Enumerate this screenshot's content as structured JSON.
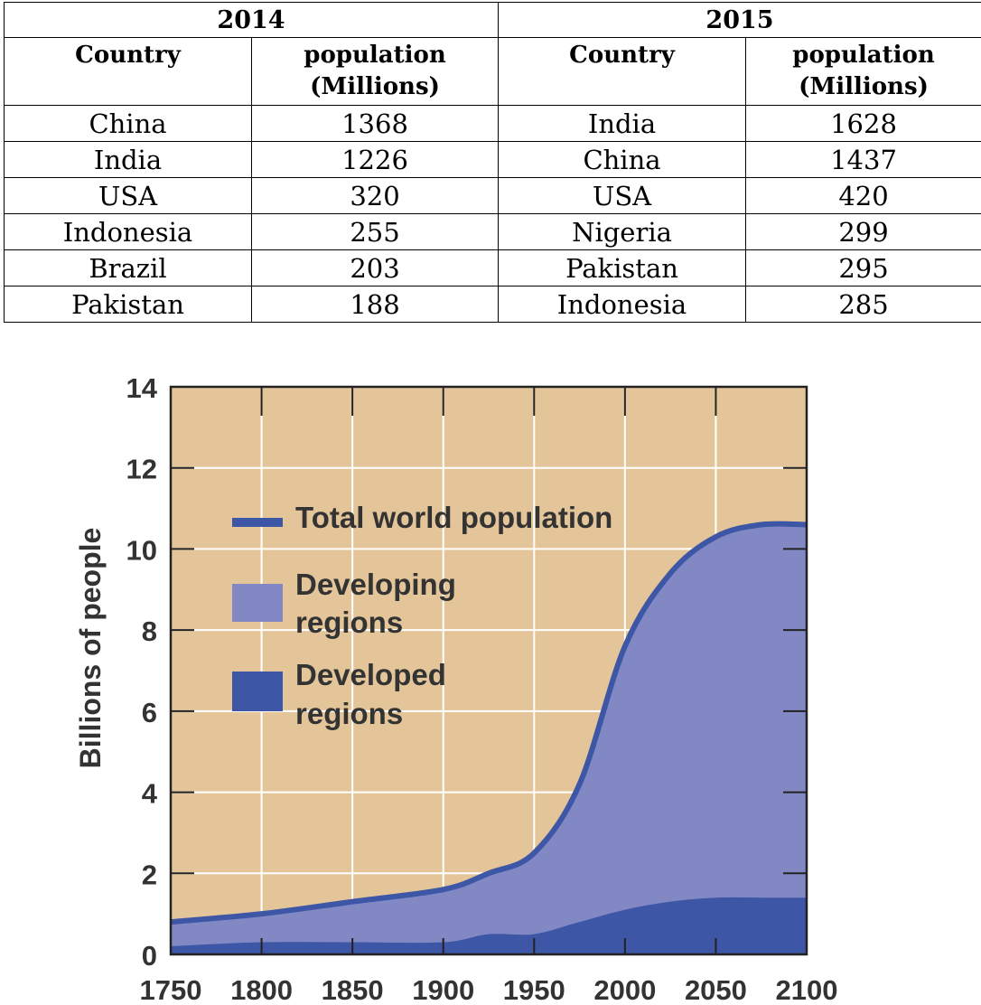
{
  "table": {
    "years": [
      "2014",
      "2015"
    ],
    "col_country": "Country",
    "col_population": [
      "population",
      "(Millions)"
    ],
    "rows": [
      {
        "c2014": "China",
        "p2014": "1368",
        "c2015": "India",
        "p2015": "1628"
      },
      {
        "c2014": "India",
        "p2014": "1226",
        "c2015": "China",
        "p2015": "1437"
      },
      {
        "c2014": "USA",
        "p2014": "320",
        "c2015": "USA",
        "p2015": "420"
      },
      {
        "c2014": "Indonesia",
        "p2014": "255",
        "c2015": "Nigeria",
        "p2015": "299"
      },
      {
        "c2014": "Brazil",
        "p2014": "203",
        "c2015": "Pakistan",
        "p2015": "295"
      },
      {
        "c2014": "Pakistan",
        "p2014": "188",
        "c2015": "Indonesia",
        "p2015": "285"
      }
    ]
  },
  "chart_data": {
    "type": "area",
    "title": "",
    "xlabel": "",
    "ylabel": "Billions of people",
    "xlim": [
      1750,
      2100
    ],
    "ylim": [
      0,
      14
    ],
    "x_ticks": [
      "1750",
      "1800",
      "1850",
      "1900",
      "1950",
      "2000",
      "2050",
      "2100"
    ],
    "y_ticks": [
      "0",
      "2",
      "4",
      "6",
      "8",
      "10",
      "12",
      "14"
    ],
    "grid": true,
    "legend_position": "upper-left",
    "x": [
      1750,
      1800,
      1850,
      1900,
      1925,
      1950,
      1975,
      2000,
      2025,
      2050,
      2075,
      2100
    ],
    "series": [
      {
        "name": "Total world population",
        "values": [
          0.8,
          1.0,
          1.3,
          1.6,
          2.0,
          2.5,
          4.2,
          7.6,
          9.4,
          10.3,
          10.6,
          10.6
        ]
      },
      {
        "name": "Developing regions",
        "values": [
          0.6,
          0.8,
          1.0,
          1.3,
          1.6,
          2.0,
          3.4,
          6.6,
          8.1,
          8.9,
          9.2,
          9.2
        ]
      },
      {
        "name": "Developed regions",
        "values": [
          0.2,
          0.3,
          0.3,
          0.3,
          0.5,
          0.5,
          0.8,
          1.1,
          1.3,
          1.4,
          1.4,
          1.4
        ]
      }
    ],
    "legend": [
      {
        "lines": [
          "Total world population"
        ]
      },
      {
        "lines": [
          "Developing",
          "regions"
        ]
      },
      {
        "lines": [
          "Developed",
          "regions"
        ]
      }
    ],
    "colors": {
      "background": "#e4c599",
      "total_line": "#3d56a6",
      "developing": "#8188c4",
      "developed": "#3d56a6",
      "grid": "#ffffff",
      "frame": "#222222"
    }
  }
}
